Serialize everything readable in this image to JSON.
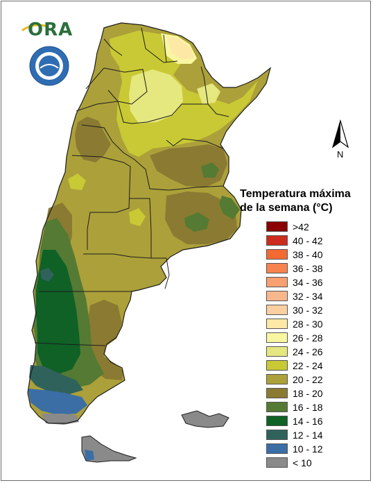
{
  "logo": {
    "text": "ORA"
  },
  "north_arrow": {
    "label": "N"
  },
  "legend": {
    "title_line1": "Temperatura máxima",
    "title_line2": "de la semana (°C)",
    "items": [
      {
        "label": ">42",
        "color": "#8b0000"
      },
      {
        "label": "40 - 42",
        "color": "#cc2b1d"
      },
      {
        "label": "38 - 40",
        "color": "#f36a32"
      },
      {
        "label": "36 - 38",
        "color": "#f7834e"
      },
      {
        "label": "34 - 36",
        "color": "#f8a070"
      },
      {
        "label": "32 - 34",
        "color": "#f9b78e"
      },
      {
        "label": "30 - 32",
        "color": "#fbcf9f"
      },
      {
        "label": "28 - 30",
        "color": "#fde8a6"
      },
      {
        "label": "26 - 28",
        "color": "#f9f6a1"
      },
      {
        "label": "24 - 26",
        "color": "#e5e77f"
      },
      {
        "label": "22 - 24",
        "color": "#c9c935"
      },
      {
        "label": "20 - 22",
        "color": "#aca03a"
      },
      {
        "label": "18 - 20",
        "color": "#8b7a32"
      },
      {
        "label": "16 - 18",
        "color": "#547a33"
      },
      {
        "label": "14 - 16",
        "color": "#0f6126"
      },
      {
        "label": "12 - 14",
        "color": "#30625c"
      },
      {
        "label": "10 - 12",
        "color": "#3a6ea5"
      },
      {
        "label": "< 10",
        "color": "#8a8a8a"
      }
    ]
  },
  "palette": {
    "c20_22": "#aca03a",
    "c22_24": "#c9c935",
    "c24_26": "#e5e77f",
    "c26_28": "#f9f6a1",
    "c28_30": "#fde8a6",
    "c18_20": "#8b7a32",
    "c16_18": "#547a33",
    "c14_16": "#0f6126",
    "c12_14": "#30625c",
    "c10_12": "#3a6ea5",
    "cbelow10": "#8a8a8a"
  }
}
